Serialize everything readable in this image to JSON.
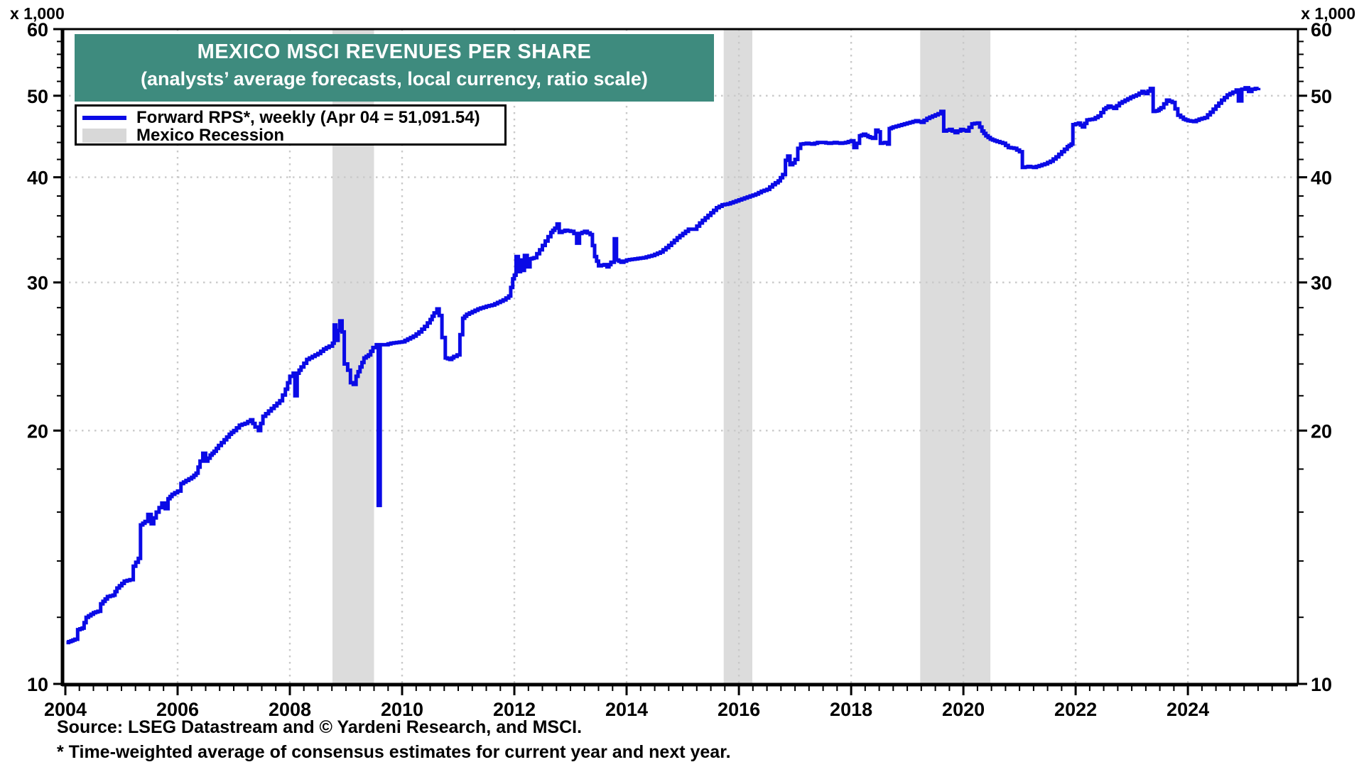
{
  "header": {
    "unit_left": "x 1,000",
    "unit_right": "x 1,000"
  },
  "title": {
    "line1": "MEXICO MSCI REVENUES PER SHARE",
    "line2": "(analysts’ average forecasts, local currency, ratio scale)",
    "bg_color": "#3E8B7E",
    "text_color": "#FFFFFF"
  },
  "legend": {
    "items": [
      {
        "type": "line",
        "label": "Forward RPS*, weekly (Apr 04 = 51,091.54)",
        "color": "#0A0AE6"
      },
      {
        "type": "box",
        "label": "Mexico Recession",
        "color": "#D8D8D8"
      }
    ]
  },
  "footer": {
    "source": "Source: LSEG Datastream and © Yardeni Research, and MSCI.",
    "footnote": "* Time-weighted average of consensus estimates for current year and next year."
  },
  "chart_data": {
    "type": "line",
    "title": "MEXICO MSCI REVENUES PER SHARE",
    "subtitle": "(analysts’ average forecasts, local currency, ratio scale)",
    "xlabel": "",
    "ylabel": "x 1,000",
    "y_scale": "log",
    "x_domain": [
      2003.95,
      2025.96
    ],
    "y_domain": [
      10,
      60
    ],
    "x_major_ticks": [
      2004,
      2006,
      2008,
      2010,
      2012,
      2014,
      2016,
      2018,
      2020,
      2022,
      2024
    ],
    "x_minor_tick_step": 0.25,
    "x_gridlines": [
      2006,
      2008,
      2010,
      2012,
      2014,
      2016,
      2018,
      2020,
      2022,
      2024
    ],
    "y_major_ticks": [
      10,
      20,
      30,
      40,
      50,
      60
    ],
    "y_minor_ticks": [
      12,
      14,
      16,
      18,
      22,
      24,
      26,
      28,
      32,
      34,
      36,
      38,
      42,
      44,
      46,
      48,
      52,
      54,
      56,
      58
    ],
    "y_gridlines": [
      20,
      30,
      40,
      50
    ],
    "recession_bands": [
      [
        2008.76,
        2009.5
      ],
      [
        2015.73,
        2016.24
      ],
      [
        2019.23,
        2020.48
      ]
    ],
    "band_color": "#DCDCDC",
    "grid_color": "#C9C9C9",
    "line_color": "#0A0AE6",
    "series": [
      {
        "name": "Forward RPS*, weekly",
        "last_point_label": "Apr 04 = 51,091.54",
        "last_value_thousands": 51.09154,
        "units": "thousands, local currency",
        "points": [
          [
            2004.02,
            11.2
          ],
          [
            2004.1,
            11.25
          ],
          [
            2004.17,
            11.3
          ],
          [
            2004.22,
            11.6
          ],
          [
            2004.3,
            11.65
          ],
          [
            2004.37,
            12.0
          ],
          [
            2004.5,
            12.15
          ],
          [
            2004.58,
            12.2
          ],
          [
            2004.63,
            12.45
          ],
          [
            2004.75,
            12.7
          ],
          [
            2004.85,
            12.75
          ],
          [
            2004.92,
            13.0
          ],
          [
            2005.05,
            13.25
          ],
          [
            2005.15,
            13.3
          ],
          [
            2005.21,
            13.8
          ],
          [
            2005.3,
            14.1
          ],
          [
            2005.34,
            15.45
          ],
          [
            2005.42,
            15.6
          ],
          [
            2005.47,
            15.9
          ],
          [
            2005.53,
            15.5
          ],
          [
            2005.62,
            16.0
          ],
          [
            2005.72,
            16.4
          ],
          [
            2005.78,
            16.15
          ],
          [
            2005.83,
            16.6
          ],
          [
            2005.9,
            16.8
          ],
          [
            2006.0,
            16.95
          ],
          [
            2006.06,
            17.3
          ],
          [
            2006.15,
            17.45
          ],
          [
            2006.25,
            17.6
          ],
          [
            2006.33,
            17.8
          ],
          [
            2006.4,
            18.4
          ],
          [
            2006.45,
            18.8
          ],
          [
            2006.5,
            18.4
          ],
          [
            2006.58,
            18.7
          ],
          [
            2006.65,
            18.9
          ],
          [
            2006.73,
            19.2
          ],
          [
            2006.83,
            19.5
          ],
          [
            2006.92,
            19.8
          ],
          [
            2007.0,
            20.0
          ],
          [
            2007.1,
            20.3
          ],
          [
            2007.2,
            20.4
          ],
          [
            2007.3,
            20.6
          ],
          [
            2007.38,
            20.2
          ],
          [
            2007.44,
            20.0
          ],
          [
            2007.52,
            20.8
          ],
          [
            2007.62,
            21.1
          ],
          [
            2007.72,
            21.4
          ],
          [
            2007.82,
            21.7
          ],
          [
            2007.92,
            22.4
          ],
          [
            2008.0,
            23.2
          ],
          [
            2008.06,
            23.4
          ],
          [
            2008.09,
            22.0
          ],
          [
            2008.13,
            23.4
          ],
          [
            2008.2,
            23.8
          ],
          [
            2008.3,
            24.3
          ],
          [
            2008.4,
            24.5
          ],
          [
            2008.5,
            24.7
          ],
          [
            2008.6,
            25.0
          ],
          [
            2008.7,
            25.2
          ],
          [
            2008.76,
            25.4
          ],
          [
            2008.79,
            26.7
          ],
          [
            2008.82,
            25.6
          ],
          [
            2008.86,
            26.3
          ],
          [
            2008.89,
            27.0
          ],
          [
            2008.93,
            26.2
          ],
          [
            2008.97,
            24.0
          ],
          [
            2009.03,
            23.6
          ],
          [
            2009.08,
            22.8
          ],
          [
            2009.13,
            22.7
          ],
          [
            2009.18,
            23.2
          ],
          [
            2009.25,
            23.8
          ],
          [
            2009.32,
            24.4
          ],
          [
            2009.4,
            24.6
          ],
          [
            2009.48,
            25.1
          ],
          [
            2009.54,
            25.3
          ],
          [
            2009.575,
            16.3
          ],
          [
            2009.61,
            25.3
          ],
          [
            2009.7,
            25.3
          ],
          [
            2009.8,
            25.4
          ],
          [
            2009.9,
            25.45
          ],
          [
            2010.0,
            25.5
          ],
          [
            2010.1,
            25.7
          ],
          [
            2010.2,
            25.9
          ],
          [
            2010.3,
            26.2
          ],
          [
            2010.4,
            26.6
          ],
          [
            2010.5,
            27.1
          ],
          [
            2010.57,
            27.6
          ],
          [
            2010.62,
            27.9
          ],
          [
            2010.66,
            27.4
          ],
          [
            2010.71,
            25.8
          ],
          [
            2010.77,
            24.4
          ],
          [
            2010.85,
            24.3
          ],
          [
            2010.92,
            24.5
          ],
          [
            2010.98,
            24.6
          ],
          [
            2011.03,
            26.0
          ],
          [
            2011.08,
            27.2
          ],
          [
            2011.15,
            27.5
          ],
          [
            2011.25,
            27.7
          ],
          [
            2011.35,
            27.9
          ],
          [
            2011.5,
            28.1
          ],
          [
            2011.6,
            28.2
          ],
          [
            2011.7,
            28.4
          ],
          [
            2011.8,
            28.6
          ],
          [
            2011.9,
            28.9
          ],
          [
            2011.97,
            30.3
          ],
          [
            2012.0,
            30.6
          ],
          [
            2012.03,
            32.2
          ],
          [
            2012.07,
            30.9
          ],
          [
            2012.11,
            31.9
          ],
          [
            2012.14,
            31.0
          ],
          [
            2012.18,
            32.3
          ],
          [
            2012.23,
            31.3
          ],
          [
            2012.28,
            32.0
          ],
          [
            2012.35,
            32.1
          ],
          [
            2012.45,
            32.8
          ],
          [
            2012.55,
            33.6
          ],
          [
            2012.65,
            34.4
          ],
          [
            2012.72,
            34.8
          ],
          [
            2012.76,
            35.2
          ],
          [
            2012.8,
            34.4
          ],
          [
            2012.9,
            34.6
          ],
          [
            2013.0,
            34.5
          ],
          [
            2013.06,
            34.3
          ],
          [
            2013.11,
            33.4
          ],
          [
            2013.16,
            34.3
          ],
          [
            2013.25,
            34.5
          ],
          [
            2013.35,
            34.2
          ],
          [
            2013.43,
            32.2
          ],
          [
            2013.5,
            31.4
          ],
          [
            2013.6,
            31.5
          ],
          [
            2013.65,
            31.3
          ],
          [
            2013.72,
            31.7
          ],
          [
            2013.78,
            33.8
          ],
          [
            2013.82,
            31.9
          ],
          [
            2013.9,
            31.7
          ],
          [
            2014.0,
            31.9
          ],
          [
            2014.15,
            32.0
          ],
          [
            2014.3,
            32.1
          ],
          [
            2014.45,
            32.3
          ],
          [
            2014.6,
            32.6
          ],
          [
            2014.75,
            33.2
          ],
          [
            2014.9,
            33.9
          ],
          [
            2015.0,
            34.3
          ],
          [
            2015.1,
            34.7
          ],
          [
            2015.2,
            34.7
          ],
          [
            2015.3,
            35.3
          ],
          [
            2015.4,
            35.8
          ],
          [
            2015.5,
            36.3
          ],
          [
            2015.6,
            36.8
          ],
          [
            2015.7,
            37.1
          ],
          [
            2015.8,
            37.2
          ],
          [
            2015.9,
            37.4
          ],
          [
            2016.0,
            37.6
          ],
          [
            2016.1,
            37.8
          ],
          [
            2016.2,
            38.0
          ],
          [
            2016.3,
            38.2
          ],
          [
            2016.4,
            38.5
          ],
          [
            2016.5,
            38.7
          ],
          [
            2016.6,
            39.2
          ],
          [
            2016.7,
            39.6
          ],
          [
            2016.78,
            40.3
          ],
          [
            2016.83,
            41.9
          ],
          [
            2016.87,
            42.4
          ],
          [
            2016.91,
            41.4
          ],
          [
            2016.96,
            41.6
          ],
          [
            2017.0,
            42.0
          ],
          [
            2017.05,
            43.3
          ],
          [
            2017.1,
            43.8
          ],
          [
            2017.2,
            43.9
          ],
          [
            2017.3,
            43.8
          ],
          [
            2017.4,
            44.0
          ],
          [
            2017.5,
            44.0
          ],
          [
            2017.6,
            43.9
          ],
          [
            2017.7,
            44.0
          ],
          [
            2017.8,
            43.9
          ],
          [
            2017.9,
            44.0
          ],
          [
            2018.0,
            44.2
          ],
          [
            2018.05,
            43.4
          ],
          [
            2018.1,
            43.9
          ],
          [
            2018.15,
            44.8
          ],
          [
            2018.22,
            45.0
          ],
          [
            2018.3,
            44.7
          ],
          [
            2018.38,
            44.5
          ],
          [
            2018.44,
            45.5
          ],
          [
            2018.48,
            45.3
          ],
          [
            2018.52,
            43.9
          ],
          [
            2018.6,
            44.0
          ],
          [
            2018.65,
            43.8
          ],
          [
            2018.68,
            45.7
          ],
          [
            2018.75,
            45.9
          ],
          [
            2018.85,
            46.1
          ],
          [
            2018.95,
            46.3
          ],
          [
            2019.05,
            46.5
          ],
          [
            2019.15,
            46.7
          ],
          [
            2019.25,
            46.5
          ],
          [
            2019.35,
            47.0
          ],
          [
            2019.45,
            47.3
          ],
          [
            2019.55,
            47.6
          ],
          [
            2019.6,
            47.9
          ],
          [
            2019.65,
            45.4
          ],
          [
            2019.75,
            45.6
          ],
          [
            2019.85,
            45.2
          ],
          [
            2019.95,
            45.6
          ],
          [
            2020.05,
            45.4
          ],
          [
            2020.15,
            46.3
          ],
          [
            2020.25,
            46.4
          ],
          [
            2020.33,
            45.4
          ],
          [
            2020.4,
            44.8
          ],
          [
            2020.48,
            44.4
          ],
          [
            2020.6,
            44.1
          ],
          [
            2020.7,
            43.9
          ],
          [
            2020.8,
            43.4
          ],
          [
            2020.9,
            43.3
          ],
          [
            2021.0,
            42.9
          ],
          [
            2021.05,
            41.1
          ],
          [
            2021.15,
            41.2
          ],
          [
            2021.25,
            41.1
          ],
          [
            2021.35,
            41.3
          ],
          [
            2021.45,
            41.5
          ],
          [
            2021.55,
            41.8
          ],
          [
            2021.65,
            42.3
          ],
          [
            2021.75,
            42.9
          ],
          [
            2021.85,
            43.5
          ],
          [
            2021.92,
            43.8
          ],
          [
            2021.95,
            46.2
          ],
          [
            2022.05,
            46.4
          ],
          [
            2022.12,
            45.9
          ],
          [
            2022.2,
            46.8
          ],
          [
            2022.3,
            46.9
          ],
          [
            2022.4,
            47.3
          ],
          [
            2022.5,
            48.2
          ],
          [
            2022.58,
            48.6
          ],
          [
            2022.68,
            48.3
          ],
          [
            2022.78,
            49.0
          ],
          [
            2022.88,
            49.4
          ],
          [
            2022.98,
            49.8
          ],
          [
            2023.08,
            50.1
          ],
          [
            2023.18,
            50.6
          ],
          [
            2023.25,
            50.3
          ],
          [
            2023.33,
            51.0
          ],
          [
            2023.38,
            47.9
          ],
          [
            2023.45,
            48.0
          ],
          [
            2023.52,
            48.4
          ],
          [
            2023.62,
            49.4
          ],
          [
            2023.72,
            49.1
          ],
          [
            2023.82,
            47.4
          ],
          [
            2023.92,
            46.9
          ],
          [
            2024.0,
            46.7
          ],
          [
            2024.1,
            46.6
          ],
          [
            2024.2,
            46.9
          ],
          [
            2024.3,
            47.1
          ],
          [
            2024.4,
            47.8
          ],
          [
            2024.5,
            48.6
          ],
          [
            2024.6,
            49.4
          ],
          [
            2024.7,
            50.1
          ],
          [
            2024.8,
            50.5
          ],
          [
            2024.86,
            50.8
          ],
          [
            2024.9,
            49.3
          ],
          [
            2024.96,
            50.9
          ],
          [
            2025.02,
            51.1
          ],
          [
            2025.08,
            50.6
          ],
          [
            2025.14,
            50.9
          ],
          [
            2025.2,
            51.0
          ],
          [
            2025.26,
            51.09
          ]
        ]
      }
    ]
  }
}
